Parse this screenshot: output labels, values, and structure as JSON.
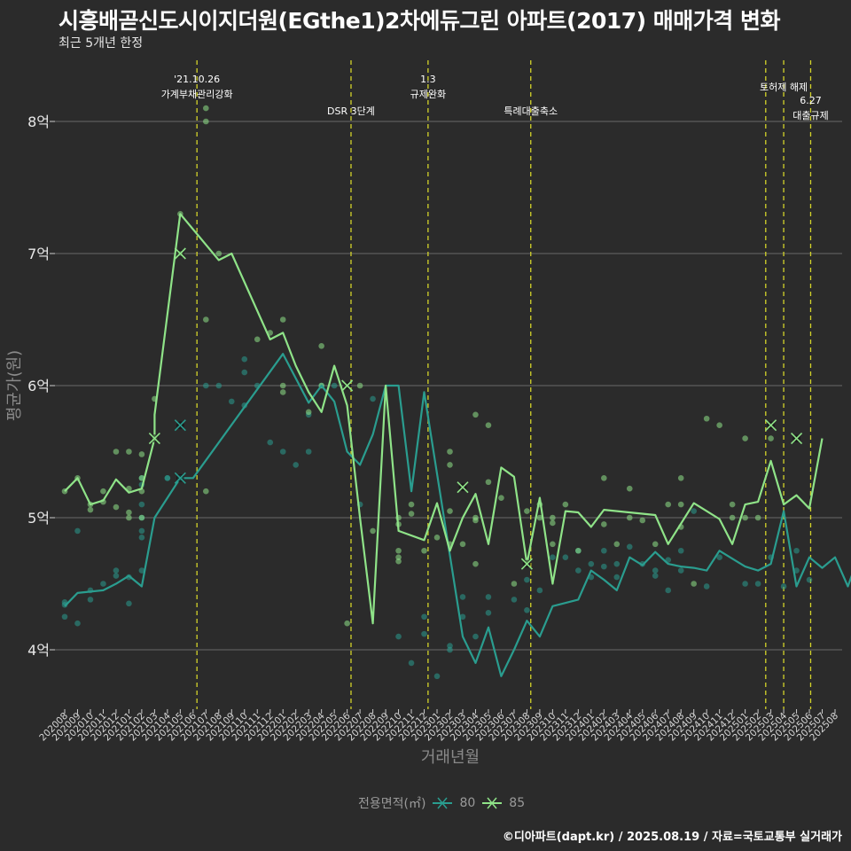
{
  "header": {
    "title": "시흥배곧신도시이지더원(EGthe1)2차에듀그린 아파트(2017) 매매가격 변화",
    "subtitle": "최근 5개년 한정"
  },
  "caption": "©디아파트(dapt.kr) / 2025.08.19 / 자료=국토교통부 실거래가",
  "colors": {
    "background": "#2b2b2b",
    "series80": "#2a9d8f",
    "series85": "#8fe388",
    "events": "#d4d42a",
    "grid": "#6a6a6a"
  },
  "chart_data": {
    "type": "line",
    "xlabel": "거래년월",
    "ylabel": "평균가(원)",
    "ylim": [
      3.6,
      8.6
    ],
    "y_ticks": [
      {
        "value": 4,
        "label": "4억"
      },
      {
        "value": 5,
        "label": "5억"
      },
      {
        "value": 6,
        "label": "6억"
      },
      {
        "value": 7,
        "label": "7억"
      },
      {
        "value": 8,
        "label": "8억"
      }
    ],
    "categories": [
      "202008",
      "202009",
      "202010",
      "202011",
      "202012",
      "202101",
      "202102",
      "202103",
      "202104",
      "202105",
      "202106",
      "202107",
      "202108",
      "202109",
      "202110",
      "202111",
      "202112",
      "202201",
      "202202",
      "202203",
      "202204",
      "202205",
      "202206",
      "202207",
      "202208",
      "202209",
      "202210",
      "202211",
      "202212",
      "202301",
      "202302",
      "202303",
      "202304",
      "202305",
      "202306",
      "202307",
      "202308",
      "202309",
      "202310",
      "202311",
      "202312",
      "202401",
      "202402",
      "202403",
      "202404",
      "202405",
      "202406",
      "202407",
      "202408",
      "202409",
      "202410",
      "202411",
      "202412",
      "202501",
      "202502",
      "202503",
      "202504",
      "202505",
      "202506",
      "202507",
      "202508"
    ],
    "legend_title": "전용면적(㎡)",
    "series": [
      {
        "name": "80",
        "color": "#2a9d8f",
        "line": [
          [
            0,
            4.33
          ],
          [
            1,
            4.43
          ],
          [
            3,
            4.45
          ],
          [
            4,
            4.5
          ],
          [
            5,
            4.56
          ],
          [
            6,
            4.48
          ],
          [
            7,
            5.0
          ],
          [
            9,
            5.3
          ],
          [
            10,
            5.3
          ],
          [
            17,
            6.24
          ],
          [
            19,
            5.87
          ],
          [
            20,
            6.0
          ],
          [
            21,
            5.88
          ],
          [
            22,
            5.5
          ],
          [
            23,
            5.4
          ],
          [
            24,
            5.63
          ],
          [
            25,
            6.0
          ],
          [
            26,
            6.0
          ],
          [
            27,
            5.2
          ],
          [
            28,
            5.95
          ],
          [
            31,
            4.1
          ],
          [
            32,
            3.9
          ],
          [
            33,
            4.17
          ],
          [
            34,
            3.8
          ],
          [
            35,
            4.0
          ],
          [
            36,
            4.22
          ],
          [
            37,
            4.1
          ],
          [
            38,
            4.33
          ],
          [
            40,
            4.38
          ],
          [
            41,
            4.6
          ],
          [
            42,
            4.53
          ],
          [
            43,
            4.45
          ],
          [
            44,
            4.7
          ],
          [
            45,
            4.64
          ],
          [
            46,
            4.74
          ],
          [
            47,
            4.65
          ],
          [
            48,
            4.63
          ],
          [
            49,
            4.62
          ],
          [
            50,
            4.6
          ],
          [
            51,
            4.75
          ],
          [
            53,
            4.63
          ],
          [
            54,
            4.6
          ],
          [
            55,
            4.65
          ],
          [
            56,
            5.05
          ],
          [
            57,
            4.48
          ],
          [
            58,
            4.7
          ],
          [
            59,
            4.62
          ],
          [
            60,
            4.7
          ],
          [
            61,
            4.48
          ],
          [
            62,
            4.75
          ],
          [
            63,
            4.53
          ]
        ],
        "points": [
          [
            0,
            4.36
          ],
          [
            0,
            4.34
          ],
          [
            0,
            4.25
          ],
          [
            1,
            4.2
          ],
          [
            1,
            4.9
          ],
          [
            2,
            4.45
          ],
          [
            2,
            4.38
          ],
          [
            3,
            4.5
          ],
          [
            4,
            4.6
          ],
          [
            4,
            4.56
          ],
          [
            5,
            4.35
          ],
          [
            5,
            4.55
          ],
          [
            6,
            4.85
          ],
          [
            6,
            4.9
          ],
          [
            6,
            5.0
          ],
          [
            6,
            5.3
          ],
          [
            6,
            5.25
          ],
          [
            6,
            5.1
          ],
          [
            6,
            4.6
          ],
          [
            8,
            5.3
          ],
          [
            8,
            5.3
          ],
          [
            9,
            5.3
          ],
          [
            11,
            6.0
          ],
          [
            12,
            6.0
          ],
          [
            13,
            5.88
          ],
          [
            14,
            6.2
          ],
          [
            14,
            6.1
          ],
          [
            14,
            5.85
          ],
          [
            15,
            6.0
          ],
          [
            16,
            5.57
          ],
          [
            17,
            5.5
          ],
          [
            18,
            5.4
          ],
          [
            19,
            5.78
          ],
          [
            19,
            5.5
          ],
          [
            20,
            6.0
          ],
          [
            21,
            6.0
          ],
          [
            23,
            5.1
          ],
          [
            24,
            5.9
          ],
          [
            26,
            4.1
          ],
          [
            27,
            3.9
          ],
          [
            28,
            4.25
          ],
          [
            28,
            4.12
          ],
          [
            29,
            3.8
          ],
          [
            30,
            4.0
          ],
          [
            30,
            4.03
          ],
          [
            31,
            4.4
          ],
          [
            31,
            4.25
          ],
          [
            32,
            4.1
          ],
          [
            33,
            4.4
          ],
          [
            33,
            4.28
          ],
          [
            35,
            4.38
          ],
          [
            36,
            4.53
          ],
          [
            36,
            4.3
          ],
          [
            37,
            4.45
          ],
          [
            38,
            4.7
          ],
          [
            39,
            4.7
          ],
          [
            40,
            4.75
          ],
          [
            40,
            4.6
          ],
          [
            41,
            4.55
          ],
          [
            41,
            4.65
          ],
          [
            42,
            4.75
          ],
          [
            42,
            4.63
          ],
          [
            43,
            4.55
          ],
          [
            43,
            4.65
          ],
          [
            44,
            4.78
          ],
          [
            45,
            4.65
          ],
          [
            46,
            4.6
          ],
          [
            46,
            4.56
          ],
          [
            47,
            4.45
          ],
          [
            47,
            4.68
          ],
          [
            48,
            4.75
          ],
          [
            48,
            4.6
          ],
          [
            49,
            5.05
          ],
          [
            50,
            4.48
          ],
          [
            51,
            4.7
          ],
          [
            53,
            4.5
          ],
          [
            54,
            4.5
          ],
          [
            55,
            4.7
          ],
          [
            56,
            4.48
          ],
          [
            57,
            4.75
          ],
          [
            57,
            4.6
          ],
          [
            58,
            4.53
          ]
        ],
        "mean_markers": [
          [
            9,
            5.3
          ],
          [
            9,
            5.7
          ]
        ]
      },
      {
        "name": "85",
        "color": "#8fe388",
        "line": [
          [
            0,
            5.2
          ],
          [
            1,
            5.3
          ],
          [
            2,
            5.1
          ],
          [
            3,
            5.13
          ],
          [
            4,
            5.29
          ],
          [
            5,
            5.19
          ],
          [
            6,
            5.22
          ],
          [
            7,
            5.6
          ],
          [
            7,
            5.78
          ],
          [
            9,
            7.3
          ],
          [
            12,
            6.95
          ],
          [
            13,
            7.0
          ],
          [
            16,
            6.35
          ],
          [
            17,
            6.4
          ],
          [
            18,
            6.15
          ],
          [
            19,
            5.95
          ],
          [
            20,
            5.8
          ],
          [
            21,
            6.15
          ],
          [
            22,
            5.85
          ],
          [
            23,
            5.0
          ],
          [
            24,
            4.2
          ],
          [
            25,
            6.0
          ],
          [
            26,
            4.9
          ],
          [
            28,
            4.83
          ],
          [
            29,
            5.11
          ],
          [
            30,
            4.75
          ],
          [
            31,
            5.0
          ],
          [
            32,
            5.18
          ],
          [
            33,
            4.8
          ],
          [
            34,
            5.38
          ],
          [
            35,
            5.31
          ],
          [
            36,
            4.65
          ],
          [
            37,
            5.15
          ],
          [
            38,
            4.5
          ],
          [
            39,
            5.05
          ],
          [
            40,
            5.04
          ],
          [
            41,
            4.93
          ],
          [
            42,
            5.06
          ],
          [
            46,
            5.02
          ],
          [
            47,
            4.8
          ],
          [
            49,
            5.11
          ],
          [
            50,
            5.05
          ],
          [
            51,
            4.99
          ],
          [
            52,
            4.8
          ],
          [
            53,
            5.1
          ],
          [
            54,
            5.12
          ],
          [
            55,
            5.43
          ],
          [
            56,
            5.1
          ],
          [
            57,
            5.17
          ],
          [
            58,
            5.07
          ],
          [
            59,
            5.6
          ]
        ],
        "points": [
          [
            0,
            5.2
          ],
          [
            1,
            5.3
          ],
          [
            2,
            5.1
          ],
          [
            2,
            5.06
          ],
          [
            3,
            5.2
          ],
          [
            3,
            5.12
          ],
          [
            4,
            5.08
          ],
          [
            4,
            5.5
          ],
          [
            5,
            5.5
          ],
          [
            5,
            5.22
          ],
          [
            5,
            5.04
          ],
          [
            5,
            5.0
          ],
          [
            6,
            5.2
          ],
          [
            6,
            5.0
          ],
          [
            6,
            5.48
          ],
          [
            6,
            5.3
          ],
          [
            7,
            5.9
          ],
          [
            7,
            5.6
          ],
          [
            9,
            7.3
          ],
          [
            9,
            7.0
          ],
          [
            11,
            8.1
          ],
          [
            11,
            8.0
          ],
          [
            11,
            6.5
          ],
          [
            11,
            5.2
          ],
          [
            12,
            7.0
          ],
          [
            15,
            6.35
          ],
          [
            16,
            6.4
          ],
          [
            17,
            6.5
          ],
          [
            17,
            6.0
          ],
          [
            17,
            5.95
          ],
          [
            19,
            5.8
          ],
          [
            20,
            6.3
          ],
          [
            20,
            6.0
          ],
          [
            22,
            4.2
          ],
          [
            23,
            6.0
          ],
          [
            24,
            4.9
          ],
          [
            26,
            4.75
          ],
          [
            26,
            4.7
          ],
          [
            26,
            4.67
          ],
          [
            26,
            4.95
          ],
          [
            26,
            5.0
          ],
          [
            27,
            5.03
          ],
          [
            27,
            5.1
          ],
          [
            28,
            4.75
          ],
          [
            29,
            4.85
          ],
          [
            30,
            5.5
          ],
          [
            30,
            5.4
          ],
          [
            30,
            4.8
          ],
          [
            30,
            5.05
          ],
          [
            31,
            4.8
          ],
          [
            32,
            5.78
          ],
          [
            32,
            5.0
          ],
          [
            32,
            4.98
          ],
          [
            32,
            4.65
          ],
          [
            33,
            5.7
          ],
          [
            33,
            5.27
          ],
          [
            34,
            5.15
          ],
          [
            35,
            4.5
          ],
          [
            36,
            5.05
          ],
          [
            37,
            5.1
          ],
          [
            37,
            5.0
          ],
          [
            38,
            4.8
          ],
          [
            38,
            5.0
          ],
          [
            38,
            4.96
          ],
          [
            39,
            5.1
          ],
          [
            40,
            4.75
          ],
          [
            42,
            5.3
          ],
          [
            42,
            4.95
          ],
          [
            43,
            4.8
          ],
          [
            44,
            5.22
          ],
          [
            44,
            5.0
          ],
          [
            45,
            4.98
          ],
          [
            46,
            4.8
          ],
          [
            47,
            5.1
          ],
          [
            48,
            5.3
          ],
          [
            48,
            5.1
          ],
          [
            48,
            4.93
          ],
          [
            49,
            4.5
          ],
          [
            50,
            5.75
          ],
          [
            51,
            5.7
          ],
          [
            52,
            5.1
          ],
          [
            52,
            5.0
          ],
          [
            53,
            5.0
          ],
          [
            53,
            5.6
          ],
          [
            54,
            5.0
          ],
          [
            55,
            5.6
          ]
        ],
        "mean_markers": [
          [
            7,
            5.6
          ],
          [
            9,
            7.0
          ],
          [
            22,
            6.0
          ],
          [
            31,
            5.23
          ],
          [
            36,
            4.65
          ],
          [
            55,
            5.7
          ],
          [
            57,
            5.6
          ]
        ]
      }
    ],
    "events": [
      {
        "x": 10.3,
        "labels": [
          "'21.10.26",
          "가계부채관리강화"
        ]
      },
      {
        "x": 22.3,
        "labels": [
          "DSR 3단계"
        ]
      },
      {
        "x": 28.3,
        "labels": [
          "1.3",
          "규제완화"
        ]
      },
      {
        "x": 36.3,
        "labels": [
          "특례대출축소"
        ]
      },
      {
        "x": 54.6,
        "labels": []
      },
      {
        "x": 56.0,
        "labels": [
          "토허제 해제"
        ]
      },
      {
        "x": 58.1,
        "labels": [
          "6.27",
          "대출규제"
        ]
      }
    ]
  }
}
